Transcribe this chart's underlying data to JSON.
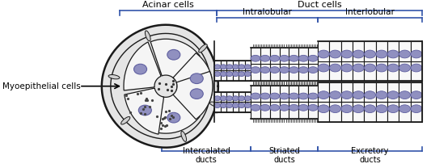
{
  "bg_color": "#ffffff",
  "bracket_color": "#3355aa",
  "line_color": "#1a1a1a",
  "cell_fill": "#f8f8f8",
  "cell_stroke": "#1a1a1a",
  "nucleus_fill": "#9090c0",
  "nucleus_stroke": "#6060a0",
  "acinus_fill": "#f0f0f0",
  "labels": {
    "acinar_cells": "Acinar cells",
    "duct_cells": "Duct cells",
    "intralobular": "Intralobular",
    "interlobular": "Interlobular",
    "myoepithelial": "Myoepithelial cells",
    "intercalated": "Intercalated\nducts",
    "striated": "Striated\nducts",
    "excretory": "Excretory\nducts"
  },
  "fig_width": 5.33,
  "fig_height": 2.08,
  "dpi": 100
}
